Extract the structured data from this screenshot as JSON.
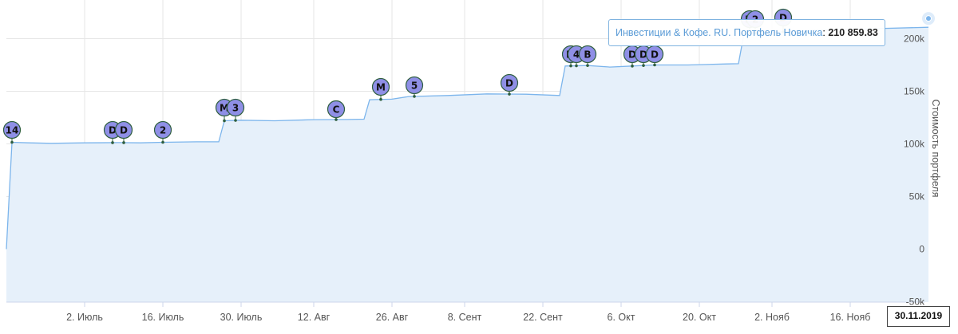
{
  "chart_data": {
    "type": "area",
    "ylabel": "Стоимость портфеля",
    "xlabel": "",
    "title": "",
    "ylim": [
      -50000,
      210000
    ],
    "x_range": [
      "2019-06-18",
      "2019-11-30"
    ],
    "x_ticks": [
      {
        "date": "2019-07-02",
        "label": "2. Июль"
      },
      {
        "date": "2019-07-16",
        "label": "16. Июль"
      },
      {
        "date": "2019-07-30",
        "label": "30. Июль"
      },
      {
        "date": "2019-08-12",
        "label": "12. Авг"
      },
      {
        "date": "2019-08-26",
        "label": "26. Авг"
      },
      {
        "date": "2019-09-08",
        "label": "8. Сент"
      },
      {
        "date": "2019-09-22",
        "label": "22. Сент"
      },
      {
        "date": "2019-10-06",
        "label": "6. Окт"
      },
      {
        "date": "2019-10-20",
        "label": "20. Окт"
      },
      {
        "date": "2019-11-02",
        "label": "2. Нояб"
      },
      {
        "date": "2019-11-16",
        "label": "16. Нояб"
      }
    ],
    "y_ticks": [
      {
        "value": -50000,
        "label": "-50k"
      },
      {
        "value": 0,
        "label": "0"
      },
      {
        "value": 50000,
        "label": "50k"
      },
      {
        "value": 100000,
        "label": "100k"
      },
      {
        "value": 150000,
        "label": "150k"
      },
      {
        "value": 200000,
        "label": "200k"
      }
    ],
    "grid": true,
    "colors": {
      "line": "#7cb5ec",
      "fill": "#e6f0fa",
      "flag_fill": "#8f8fe6",
      "flag_border": "#2e5e3e"
    },
    "series": [
      {
        "name": "Инвестиции & Кофе. RU. Портфель Новичка",
        "points": [
          [
            "2019-06-18",
            0
          ],
          [
            "2019-06-19",
            101500
          ],
          [
            "2019-06-22",
            101000
          ],
          [
            "2019-06-26",
            100500
          ],
          [
            "2019-07-02",
            101000
          ],
          [
            "2019-07-08",
            101200
          ],
          [
            "2019-07-12",
            101000
          ],
          [
            "2019-07-16",
            101500
          ],
          [
            "2019-07-22",
            102000
          ],
          [
            "2019-07-26",
            102000
          ],
          [
            "2019-07-27",
            122000
          ],
          [
            "2019-07-30",
            122500
          ],
          [
            "2019-08-05",
            122000
          ],
          [
            "2019-08-12",
            123000
          ],
          [
            "2019-08-18",
            123200
          ],
          [
            "2019-08-21",
            123500
          ],
          [
            "2019-08-22",
            142000
          ],
          [
            "2019-08-26",
            142500
          ],
          [
            "2019-08-29",
            145000
          ],
          [
            "2019-09-05",
            146000
          ],
          [
            "2019-09-12",
            147500
          ],
          [
            "2019-09-19",
            147200
          ],
          [
            "2019-09-25",
            146000
          ],
          [
            "2019-09-26",
            174000
          ],
          [
            "2019-09-30",
            174500
          ],
          [
            "2019-10-04",
            173000
          ],
          [
            "2019-10-08",
            174000
          ],
          [
            "2019-10-12",
            175000
          ],
          [
            "2019-10-18",
            175000
          ],
          [
            "2019-10-25",
            176000
          ],
          [
            "2019-10-27",
            176200
          ],
          [
            "2019-10-28",
            205000
          ],
          [
            "2019-11-02",
            206000
          ],
          [
            "2019-11-10",
            208000
          ],
          [
            "2019-11-20",
            209500
          ],
          [
            "2019-11-30",
            210859.83
          ]
        ]
      }
    ],
    "flags": [
      {
        "date": "2019-06-19",
        "label": "14",
        "top": 147
      },
      {
        "date": "2019-07-07",
        "label": "D",
        "top": 147
      },
      {
        "date": "2019-07-09",
        "label": "D",
        "top": 147
      },
      {
        "date": "2019-07-16",
        "label": "2",
        "top": 147
      },
      {
        "date": "2019-07-27",
        "label": "M",
        "top": 119
      },
      {
        "date": "2019-07-29",
        "label": "3",
        "top": 119
      },
      {
        "date": "2019-08-16",
        "label": "C",
        "top": 121
      },
      {
        "date": "2019-08-24",
        "label": "M",
        "top": 93
      },
      {
        "date": "2019-08-30",
        "label": "5",
        "top": 91
      },
      {
        "date": "2019-09-16",
        "label": "D",
        "top": 88
      },
      {
        "date": "2019-09-27",
        "label": "M",
        "top": 52
      },
      {
        "date": "2019-09-28",
        "label": "4",
        "top": 52
      },
      {
        "date": "2019-09-30",
        "label": "B",
        "top": 52
      },
      {
        "date": "2019-10-08",
        "label": "D",
        "top": 52
      },
      {
        "date": "2019-10-10",
        "label": "D",
        "top": 52
      },
      {
        "date": "2019-10-12",
        "label": "D",
        "top": 52
      },
      {
        "date": "2019-10-29",
        "label": "M",
        "top": 8
      },
      {
        "date": "2019-10-30",
        "label": "2",
        "top": 8
      },
      {
        "date": "2019-11-04",
        "label": "D",
        "top": 6
      }
    ],
    "tooltip": {
      "series_name": "Инвестиции & Кофе. RU. Портфель Новичка",
      "separator": ": ",
      "value": "210 859.83"
    },
    "crosshair_date": "30.11.2019"
  }
}
